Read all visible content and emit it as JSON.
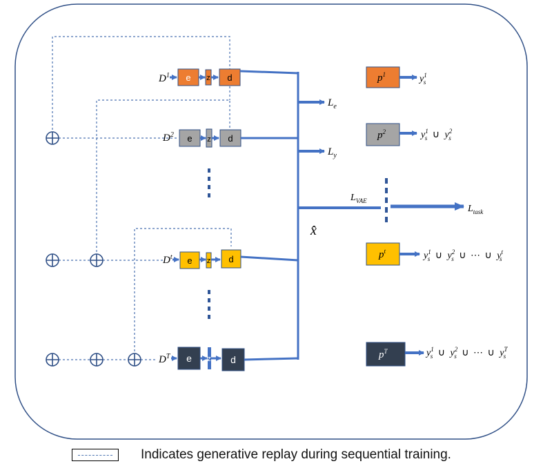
{
  "colors": {
    "outline": "#2f4f86",
    "arrow": "#4472c4",
    "orange": "#ed7d31",
    "gray": "#a5a5a5",
    "yellow": "#ffc000",
    "navy": "#334155"
  },
  "rows": [
    {
      "D": "D",
      "Dsup": "1",
      "e": "e",
      "z": "z",
      "d": "d"
    },
    {
      "D": "D",
      "Dsup": "2",
      "e": "e",
      "z": "z",
      "d": "d"
    },
    {
      "D": "D",
      "Dsup": "t",
      "e": "e",
      "z": "z",
      "d": "d"
    },
    {
      "D": "D",
      "Dsup": "T",
      "e": "e",
      "z": "z",
      "d": "d"
    }
  ],
  "losses": {
    "Le": {
      "base": "L",
      "sub": "e"
    },
    "Ly": {
      "base": "L",
      "sub": "y"
    },
    "Lvae": {
      "base": "L",
      "sub": "VAE"
    },
    "Ltask": {
      "base": "L",
      "sub": "task"
    },
    "xhat": "x̂"
  },
  "predictors": [
    {
      "p": "p",
      "sup": "1",
      "output": [
        {
          "y": "y",
          "sub": "s",
          "sup": "1"
        }
      ]
    },
    {
      "p": "p",
      "sup": "2",
      "output": [
        {
          "y": "y",
          "sub": "s",
          "sup": "1"
        },
        {
          "y": "y",
          "sub": "s",
          "sup": "2"
        }
      ]
    },
    {
      "p": "p",
      "sup": "t",
      "output": [
        {
          "y": "y",
          "sub": "s",
          "sup": "1"
        },
        {
          "y": "y",
          "sub": "s",
          "sup": "2"
        },
        {
          "y": "y",
          "sub": "s",
          "sup": "t"
        }
      ]
    },
    {
      "p": "p",
      "sup": "T",
      "output": [
        {
          "y": "y",
          "sub": "s",
          "sup": "1"
        },
        {
          "y": "y",
          "sub": "s",
          "sup": "2"
        },
        {
          "y": "y",
          "sub": "s",
          "sup": "T"
        }
      ]
    }
  ],
  "union_symbol": "∪",
  "ellipsis": "⋯",
  "legend": "Indicates generative replay during sequential training."
}
